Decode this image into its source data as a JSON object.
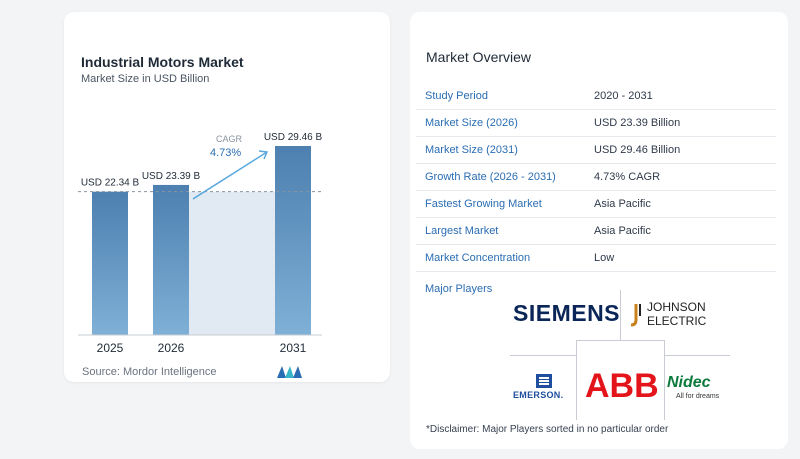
{
  "chart": {
    "title": "Industrial Motors Market",
    "subtitle": "Market Size in USD Billion",
    "cagr_label": "CAGR",
    "cagr_value": "4.73%",
    "source": "Source:  Mordor Intelligence",
    "colors": {
      "bar": "#5b8fbf",
      "bar_top": "#4d7fb0",
      "shade": "#e1e9f2",
      "arrow": "#5aa9de",
      "dashed": "#8a939e"
    }
  },
  "chart_data": {
    "type": "bar",
    "title": "Industrial Motors Market",
    "subtitle": "Market Size in USD Billion",
    "categories": [
      "2025",
      "2026",
      "2031"
    ],
    "values": [
      22.34,
      23.39,
      29.46
    ],
    "data_labels": [
      "USD 22.34 B",
      "USD 23.39 B",
      "USD 29.46 B"
    ],
    "ylim": [
      0,
      29.46
    ],
    "annotation": {
      "text": "CAGR",
      "value": "4.73%"
    },
    "grid": false
  },
  "overview": {
    "title": "Market Overview",
    "rows": [
      {
        "label": "Study Period",
        "value": "2020 - 2031"
      },
      {
        "label": "Market Size (2026)",
        "value": "USD 23.39 Billion"
      },
      {
        "label": "Market Size (2031)",
        "value": "USD 29.46 Billion"
      },
      {
        "label": "Growth Rate (2026 - 2031)",
        "value": "4.73% CAGR"
      },
      {
        "label": "Fastest Growing Market",
        "value": "Asia Pacific"
      },
      {
        "label": "Largest Market",
        "value": "Asia Pacific"
      },
      {
        "label": "Market Concentration",
        "value": "Low"
      }
    ],
    "players_label": "Major Players",
    "players": {
      "siemens": "SIEMENS",
      "johnson_line1": "JOHNSON",
      "johnson_line2": "ELECTRIC",
      "emerson": "EMERSON.",
      "abb": "ABB",
      "nidec": "Nidec",
      "nidec_tag": "All for dreams"
    },
    "disclaimer": "*Disclaimer: Major Players sorted in no particular order"
  }
}
